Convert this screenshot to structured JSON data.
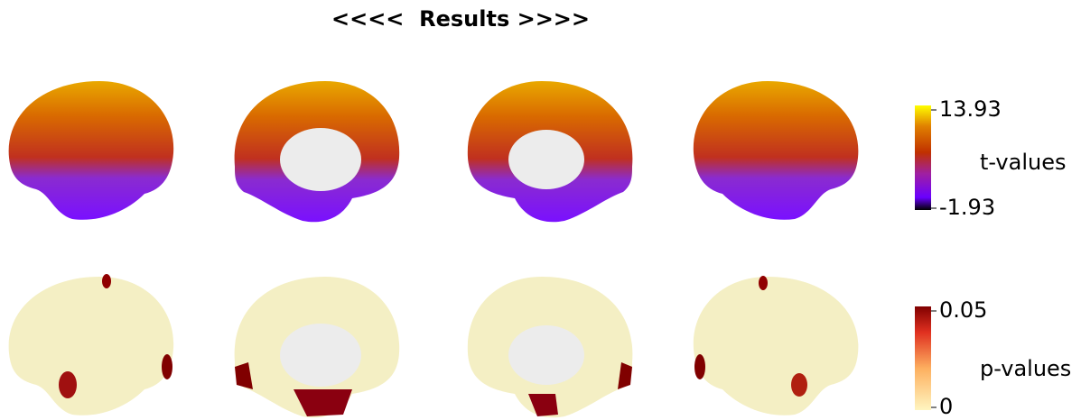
{
  "title": "<<<<  Results >>>>",
  "colorbars": [
    {
      "label": "t-values",
      "ticks": [
        13.93,
        -1.93
      ]
    },
    {
      "label": "p-values",
      "ticks": [
        0.05,
        0
      ]
    }
  ]
}
